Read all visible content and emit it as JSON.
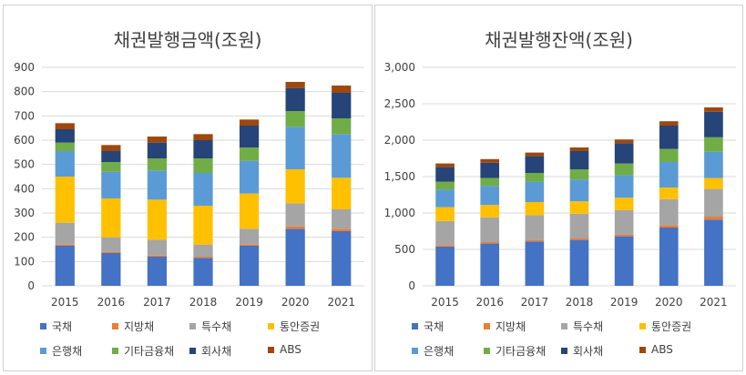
{
  "chart_data": [
    {
      "type": "bar",
      "stacked": true,
      "title": "채권발행금액(조원)",
      "categories": [
        "2015",
        "2016",
        "2017",
        "2018",
        "2019",
        "2020",
        "2021"
      ],
      "ylim": [
        0,
        900
      ],
      "yticks": [
        "0",
        "100",
        "200",
        "300",
        "400",
        "500",
        "600",
        "700",
        "800",
        "900"
      ],
      "series": [
        {
          "name": "국채",
          "color": "#4472C4",
          "values": [
            165,
            135,
            120,
            115,
            165,
            235,
            225
          ]
        },
        {
          "name": "지방채",
          "color": "#ED7D31",
          "values": [
            5,
            5,
            5,
            5,
            5,
            10,
            10
          ]
        },
        {
          "name": "특수채",
          "color": "#A5A5A5",
          "values": [
            90,
            60,
            65,
            50,
            65,
            95,
            80
          ]
        },
        {
          "name": "통안증권",
          "color": "#FFC000",
          "values": [
            190,
            160,
            165,
            160,
            145,
            140,
            130
          ]
        },
        {
          "name": "은행채",
          "color": "#5B9BD5",
          "values": [
            105,
            110,
            120,
            135,
            135,
            175,
            180
          ]
        },
        {
          "name": "기타금융채",
          "color": "#70AD47",
          "values": [
            35,
            40,
            50,
            60,
            55,
            65,
            65
          ]
        },
        {
          "name": "회사채",
          "color": "#264478",
          "values": [
            55,
            45,
            65,
            75,
            90,
            95,
            105
          ]
        },
        {
          "name": "ABS",
          "color": "#9E480E",
          "values": [
            25,
            25,
            25,
            25,
            25,
            25,
            30
          ]
        }
      ]
    },
    {
      "type": "bar",
      "stacked": true,
      "title": "채권발행잔액(조원)",
      "categories": [
        "2015",
        "2016",
        "2017",
        "2018",
        "2019",
        "2020",
        "2021"
      ],
      "ylim": [
        0,
        3000
      ],
      "yticks": [
        "0",
        "500",
        "1,000",
        "1,500",
        "2,000",
        "2,500",
        "3,000"
      ],
      "series": [
        {
          "name": "국채",
          "color": "#4472C4",
          "values": [
            540,
            580,
            610,
            630,
            680,
            800,
            910
          ]
        },
        {
          "name": "지방채",
          "color": "#ED7D31",
          "values": [
            20,
            20,
            20,
            20,
            20,
            30,
            40
          ]
        },
        {
          "name": "특수채",
          "color": "#A5A5A5",
          "values": [
            330,
            340,
            340,
            340,
            340,
            360,
            380
          ]
        },
        {
          "name": "통안증권",
          "color": "#FFC000",
          "values": [
            190,
            170,
            180,
            170,
            170,
            160,
            150
          ]
        },
        {
          "name": "은행채",
          "color": "#5B9BD5",
          "values": [
            240,
            260,
            280,
            300,
            310,
            350,
            360
          ]
        },
        {
          "name": "기타금융채",
          "color": "#70AD47",
          "values": [
            110,
            110,
            120,
            140,
            160,
            180,
            200
          ]
        },
        {
          "name": "회사채",
          "color": "#264478",
          "values": [
            200,
            210,
            230,
            250,
            280,
            320,
            350
          ]
        },
        {
          "name": "ABS",
          "color": "#9E480E",
          "values": [
            50,
            50,
            50,
            50,
            50,
            60,
            60
          ]
        }
      ]
    }
  ]
}
